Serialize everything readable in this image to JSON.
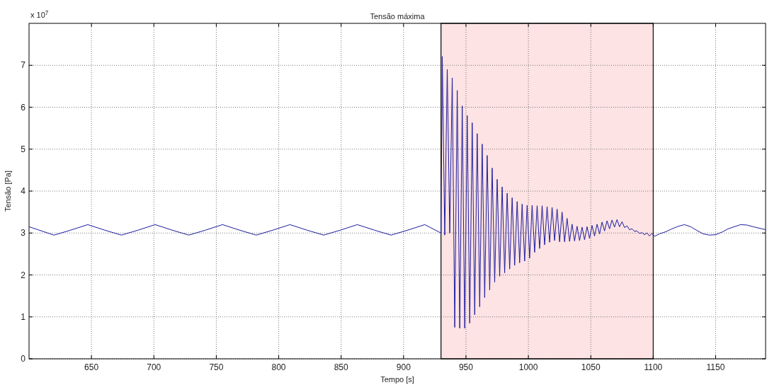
{
  "chart_data": {
    "type": "line",
    "title": "Tensão máxima",
    "xlabel": "Tempo [s]",
    "ylabel": "Tensão [Pa]",
    "annotations": [
      "x 10$^{7}$"
    ],
    "xlim": [
      600,
      1190
    ],
    "ylim": [
      0,
      8
    ],
    "xticks": [
      650,
      700,
      750,
      800,
      850,
      900,
      950,
      1000,
      1050,
      1100,
      1150
    ],
    "yticks": [
      0,
      1,
      2,
      3,
      4,
      5,
      6,
      7
    ],
    "grid": true,
    "line_style": "solid",
    "bands": [
      {
        "axis": "x",
        "from": 930,
        "to": 1100,
        "color": "#fde3e3"
      }
    ],
    "series": [
      {
        "color": "#1c1c9e",
        "x": [
          600,
          607,
          620,
          633.5,
          647,
          660.5,
          674,
          687.5,
          701,
          714.5,
          728,
          741.5,
          755,
          768.5,
          782,
          795.5,
          809,
          822.5,
          836,
          849.5,
          863,
          876.5,
          890,
          903.5,
          917,
          930,
          931,
          933,
          935,
          937,
          939,
          941,
          943,
          945,
          947,
          949,
          951,
          953,
          955,
          957,
          959,
          961,
          963,
          965,
          967,
          969,
          971,
          973,
          975,
          977,
          979,
          981,
          983,
          985,
          987,
          989,
          991,
          993,
          995,
          997,
          999,
          1001,
          1003,
          1005,
          1007,
          1009,
          1011,
          1013,
          1015,
          1017,
          1019,
          1021,
          1023,
          1025,
          1027,
          1029,
          1031,
          1033,
          1035,
          1037,
          1039,
          1041,
          1043,
          1045,
          1047,
          1049,
          1051,
          1053,
          1055,
          1057,
          1059,
          1061,
          1063,
          1065,
          1067,
          1069,
          1071,
          1073,
          1075,
          1077,
          1079,
          1081,
          1083,
          1085,
          1087,
          1089,
          1091,
          1093,
          1095,
          1097,
          1099,
          1101,
          1105,
          1110,
          1115,
          1120,
          1125,
          1130,
          1135,
          1140,
          1145,
          1150,
          1155,
          1160,
          1170,
          1175,
          1180,
          1190
        ],
        "values": [
          3.15,
          3.08,
          2.95,
          3.07,
          3.2,
          3.07,
          2.95,
          3.07,
          3.2,
          3.07,
          2.95,
          3.07,
          3.2,
          3.07,
          2.95,
          3.07,
          3.2,
          3.07,
          2.95,
          3.07,
          3.2,
          3.07,
          2.95,
          3.07,
          3.2,
          3.0,
          7.21,
          2.95,
          6.9,
          3.0,
          6.7,
          0.75,
          6.4,
          0.73,
          6.03,
          0.73,
          5.8,
          0.85,
          5.63,
          1.05,
          5.37,
          1.24,
          5.12,
          1.46,
          4.85,
          1.64,
          4.55,
          1.83,
          4.28,
          1.97,
          4.1,
          2.05,
          3.95,
          2.14,
          3.84,
          2.23,
          3.75,
          2.29,
          3.69,
          2.33,
          3.66,
          2.4,
          3.66,
          2.54,
          3.65,
          2.63,
          3.65,
          2.72,
          3.63,
          2.78,
          3.61,
          2.82,
          3.57,
          2.79,
          3.5,
          2.79,
          3.35,
          2.8,
          3.21,
          2.81,
          3.16,
          2.82,
          3.14,
          2.84,
          3.15,
          2.87,
          3.18,
          2.93,
          3.21,
          2.98,
          3.26,
          3.05,
          3.29,
          3.1,
          3.31,
          3.14,
          3.32,
          3.15,
          3.27,
          3.13,
          3.17,
          3.08,
          3.1,
          3.04,
          3.05,
          2.99,
          3.01,
          2.96,
          3.0,
          2.93,
          2.99,
          2.92,
          2.98,
          3.03,
          3.1,
          3.16,
          3.2,
          3.15,
          3.06,
          2.98,
          2.95,
          2.96,
          3.02,
          3.1,
          3.2,
          3.19,
          3.15,
          3.08
        ]
      }
    ]
  }
}
